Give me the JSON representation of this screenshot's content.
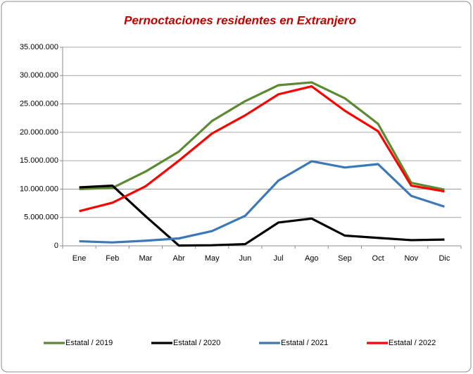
{
  "chart_data": {
    "type": "line",
    "title": "Pernoctaciones residentes en Extranjero",
    "categories": [
      "Ene",
      "Feb",
      "Mar",
      "Abr",
      "May",
      "Jun",
      "Jul",
      "Ago",
      "Sep",
      "Oct",
      "Nov",
      "Dic"
    ],
    "series": [
      {
        "name": "Estatal / 2019",
        "color": "#5b8a32",
        "values": [
          10000000,
          10200000,
          13100000,
          16600000,
          22000000,
          25500000,
          28300000,
          28800000,
          26000000,
          21500000,
          11100000,
          9900000
        ]
      },
      {
        "name": "Estatal / 2020",
        "color": "#000000",
        "values": [
          10300000,
          10600000,
          5200000,
          50000,
          100000,
          300000,
          4100000,
          4800000,
          1800000,
          1400000,
          1000000,
          1100000
        ]
      },
      {
        "name": "Estatal / 2021",
        "color": "#3a78b8",
        "values": [
          800000,
          600000,
          900000,
          1300000,
          2600000,
          5300000,
          11500000,
          14900000,
          13800000,
          14400000,
          8800000,
          6900000
        ]
      },
      {
        "name": "Estatal / 2022",
        "color": "#ff0000",
        "values": [
          6100000,
          7600000,
          10500000,
          15000000,
          19800000,
          23000000,
          26700000,
          28100000,
          23800000,
          20200000,
          10600000,
          9600000
        ]
      }
    ],
    "ylim": [
      0,
      35000000
    ],
    "yticks": [
      0,
      {
        "value": 5000000,
        "label": "5.000.000"
      },
      {
        "value": 10000000,
        "label": "10.000.000"
      },
      {
        "value": 15000000,
        "label": "15.000.000"
      },
      {
        "value": 20000000,
        "label": "20.000.000"
      },
      {
        "value": 25000000,
        "label": "25.000.000"
      },
      {
        "value": 30000000,
        "label": "30.000.000"
      },
      {
        "value": 35000000,
        "label": "35.000.000"
      }
    ],
    "grid": true,
    "legend": "bottom"
  }
}
